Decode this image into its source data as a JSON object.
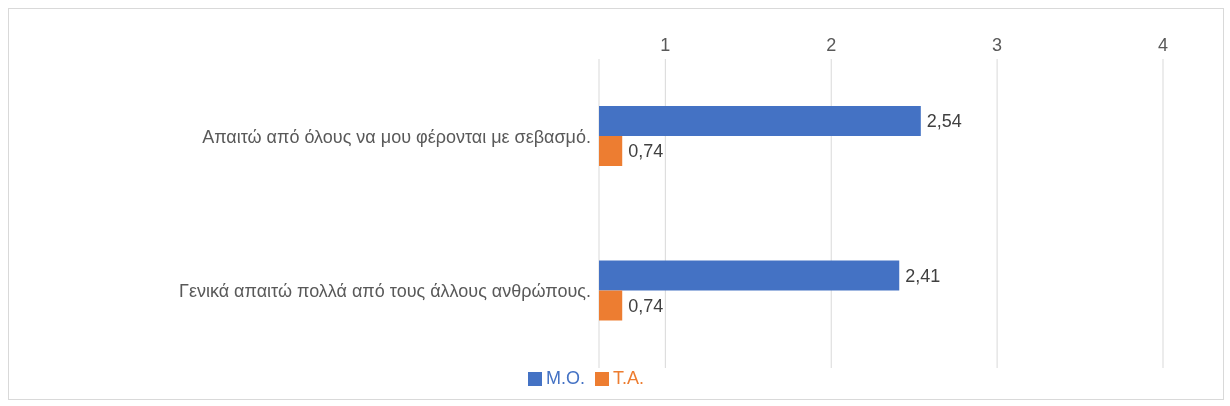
{
  "chart_data": {
    "type": "bar",
    "orientation": "horizontal",
    "categories": [
      "Απαιτώ από όλους να μου φέρονται με σεβασμό.",
      "Γενικά απαιτώ πολλά από τους άλλους ανθρώπους."
    ],
    "series": [
      {
        "name": "M.O.",
        "color": "#4472c4",
        "values": [
          2.54,
          2.41
        ],
        "value_labels": [
          "2,54",
          "2,41"
        ]
      },
      {
        "name": "T.A.",
        "color": "#ed7d31",
        "values": [
          0.74,
          0.74
        ],
        "value_labels": [
          "0,74",
          "0,74"
        ]
      }
    ],
    "xlim": [
      0.6,
      4
    ],
    "xticks": [
      1,
      2,
      3,
      4
    ],
    "grid": "x",
    "legend": "bottom"
  }
}
